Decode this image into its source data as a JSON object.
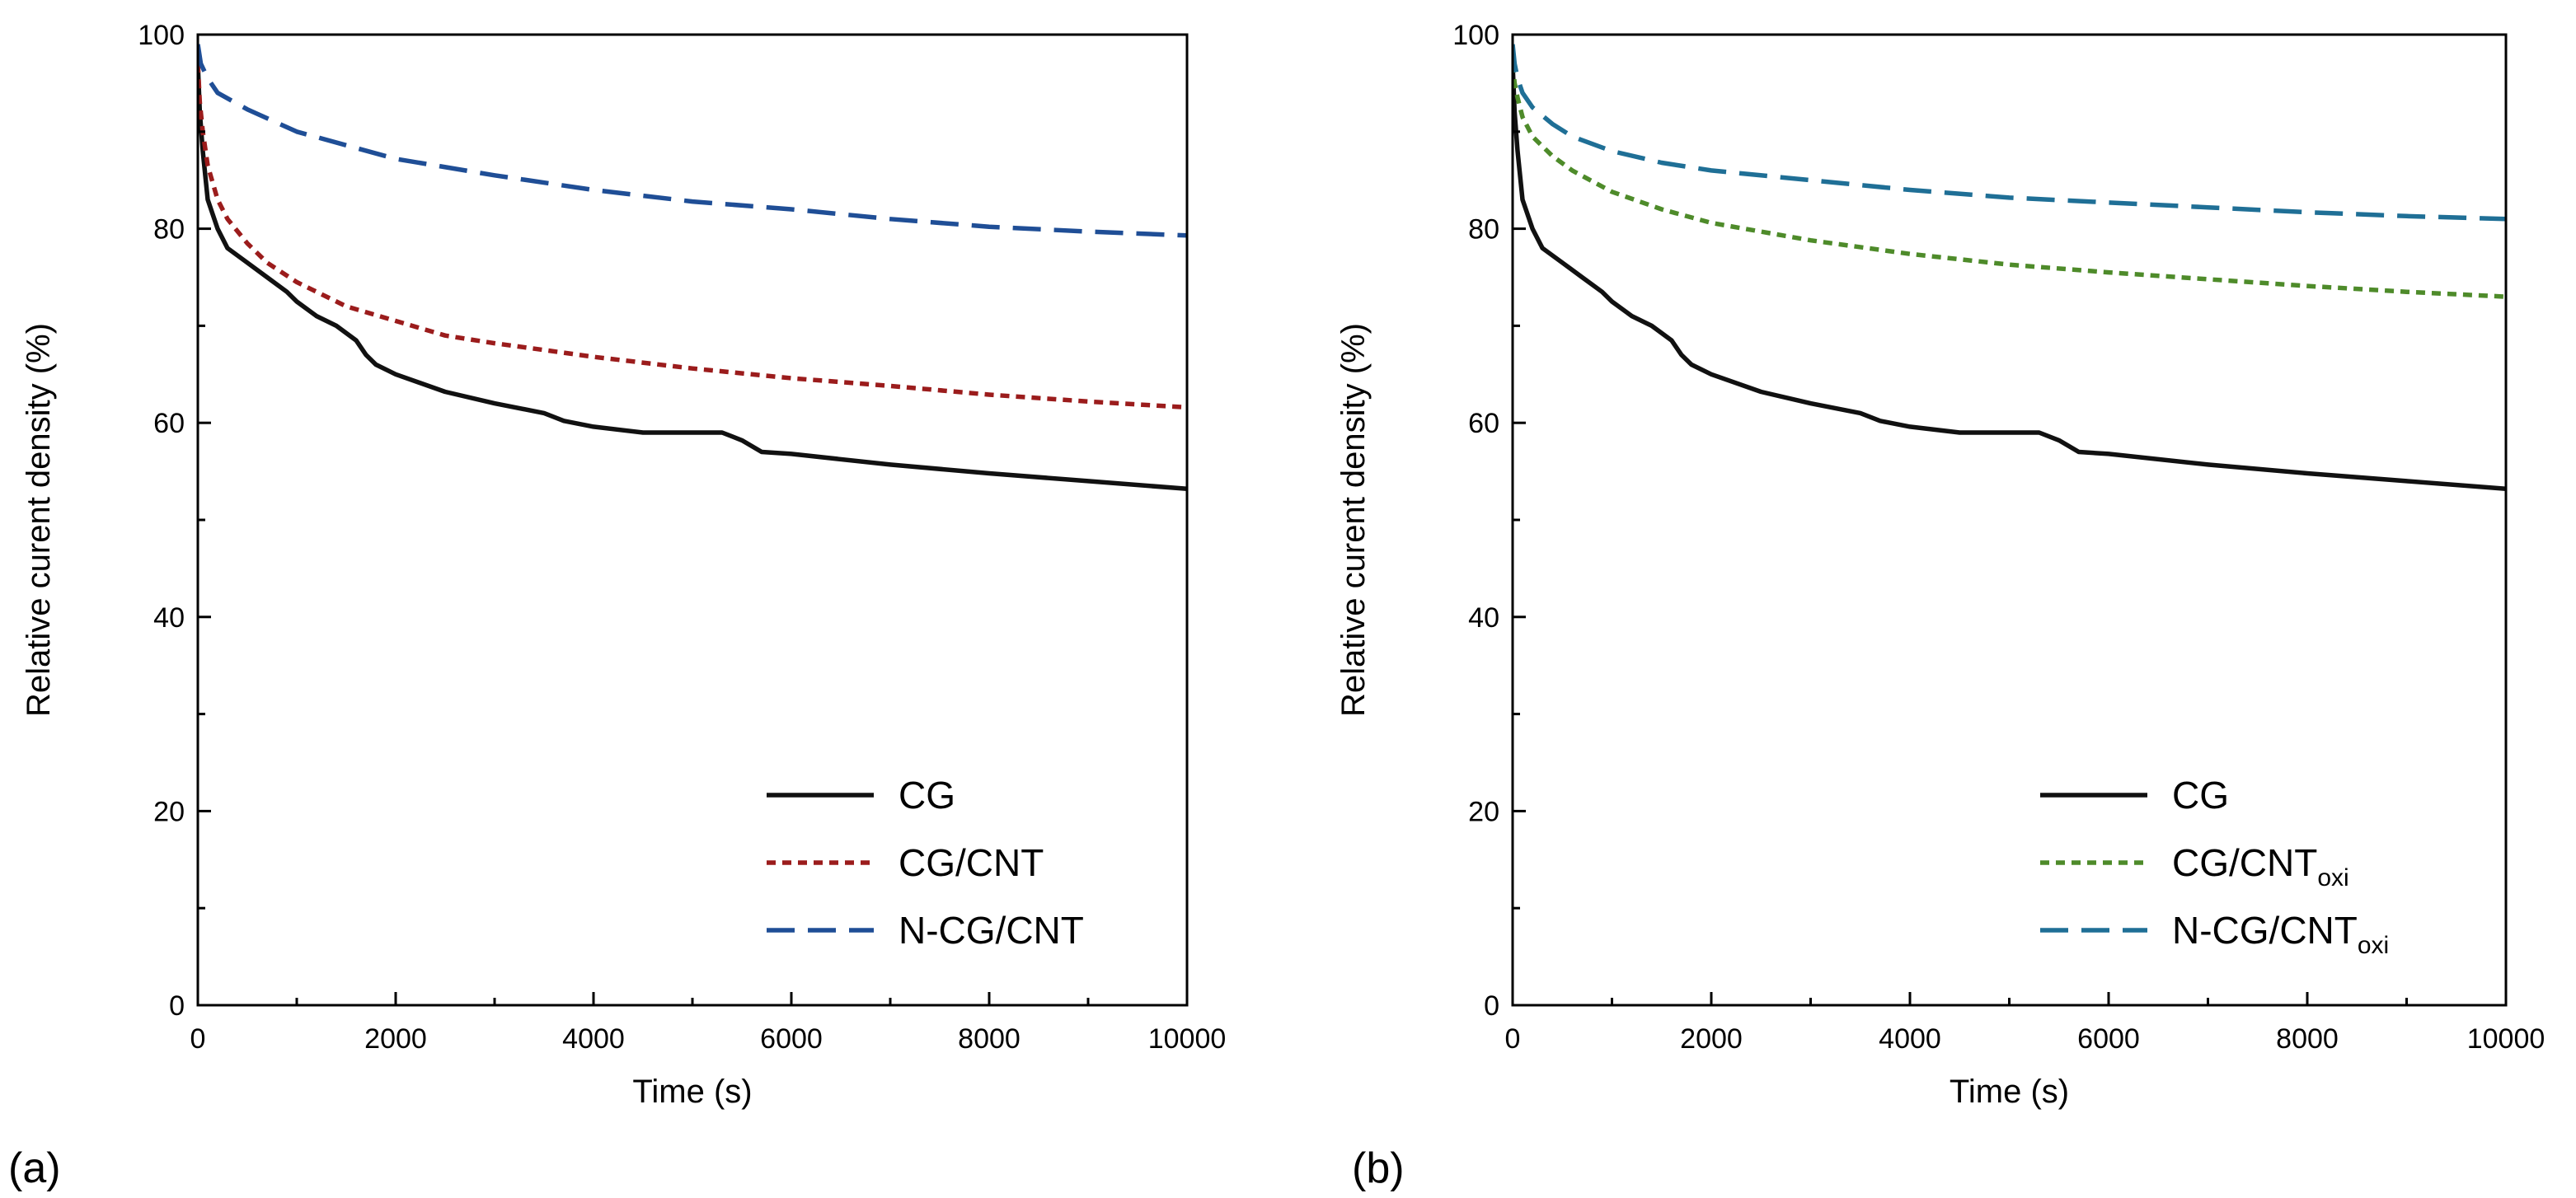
{
  "colors": {
    "cg": "#111111",
    "cnt": "#9b1c1c",
    "ncnt": "#1f4e96",
    "cntoxi": "#4e8b2a",
    "ncntoxi": "#1f6f96"
  },
  "chart_data": [
    {
      "type": "line",
      "panel_label": "(a)",
      "xlabel": "Time (s)",
      "ylabel": "Relative curent density (%)",
      "xlim": [
        0,
        10000
      ],
      "ylim": [
        0,
        100
      ],
      "xticks": [
        0,
        2000,
        4000,
        6000,
        8000,
        10000
      ],
      "yticks": [
        0,
        20,
        40,
        60,
        80,
        100
      ],
      "legend_position": "bottom-right",
      "series": [
        {
          "name": "CG",
          "sub": "",
          "style": "solid",
          "color": "#111111",
          "x": [
            0,
            20,
            50,
            100,
            200,
            300,
            500,
            700,
            900,
            1000,
            1200,
            1400,
            1600,
            1700,
            1800,
            2000,
            2500,
            3000,
            3500,
            3700,
            4000,
            4500,
            5000,
            5300,
            5500,
            5700,
            6000,
            7000,
            8000,
            9000,
            10000
          ],
          "y": [
            97,
            92,
            88,
            83,
            80,
            78,
            76.5,
            75,
            73.5,
            72.5,
            71,
            70,
            68.5,
            67,
            66,
            65,
            63.2,
            62,
            61,
            60.2,
            59.6,
            59,
            59,
            59,
            58.2,
            57,
            56.8,
            55.7,
            54.8,
            54,
            53.2
          ]
        },
        {
          "name": "CG/CNT",
          "sub": "",
          "style": "dotted",
          "color": "#9b1c1c",
          "x": [
            0,
            20,
            50,
            100,
            200,
            300,
            500,
            700,
            1000,
            1500,
            2000,
            2500,
            3000,
            3500,
            4000,
            5000,
            6000,
            7000,
            8000,
            9000,
            10000
          ],
          "y": [
            97,
            93,
            90,
            86.5,
            83,
            81,
            78.5,
            76.5,
            74.5,
            72,
            70.5,
            69,
            68.2,
            67.5,
            66.8,
            65.6,
            64.6,
            63.8,
            62.9,
            62.2,
            61.6
          ]
        },
        {
          "name": "N-CG/CNT",
          "sub": "",
          "style": "dashed",
          "color": "#1f4e96",
          "x": [
            0,
            30,
            100,
            200,
            500,
            1000,
            2000,
            3000,
            4000,
            5000,
            6000,
            7000,
            8000,
            9000,
            10000
          ],
          "y": [
            99,
            97,
            95.5,
            94,
            92.3,
            90,
            87.2,
            85.5,
            84,
            82.8,
            82,
            81,
            80.2,
            79.7,
            79.3
          ]
        }
      ]
    },
    {
      "type": "line",
      "panel_label": "(b)",
      "xlabel": "Time (s)",
      "ylabel": "Relative curent density (%)",
      "xlim": [
        0,
        10000
      ],
      "ylim": [
        0,
        100
      ],
      "xticks": [
        0,
        2000,
        4000,
        6000,
        8000,
        10000
      ],
      "yticks": [
        0,
        20,
        40,
        60,
        80,
        100
      ],
      "legend_position": "bottom-right",
      "series": [
        {
          "name": "CG",
          "sub": "",
          "style": "solid",
          "color": "#111111",
          "x": [
            0,
            20,
            50,
            100,
            200,
            300,
            500,
            700,
            900,
            1000,
            1200,
            1400,
            1600,
            1700,
            1800,
            2000,
            2500,
            3000,
            3500,
            3700,
            4000,
            4500,
            5000,
            5300,
            5500,
            5700,
            6000,
            7000,
            8000,
            9000,
            10000
          ],
          "y": [
            97,
            92,
            88,
            83,
            80,
            78,
            76.5,
            75,
            73.5,
            72.5,
            71,
            70,
            68.5,
            67,
            66,
            65,
            63.2,
            62,
            61,
            60.2,
            59.6,
            59,
            59,
            59,
            58.2,
            57,
            56.8,
            55.7,
            54.8,
            54,
            53.2
          ]
        },
        {
          "name": "CG/CNT",
          "sub": "oxi",
          "style": "dotted",
          "color": "#4e8b2a",
          "x": [
            0,
            20,
            50,
            100,
            200,
            400,
            600,
            1000,
            1500,
            2000,
            3000,
            4000,
            5000,
            6000,
            7000,
            8000,
            9000,
            10000
          ],
          "y": [
            97,
            95,
            93.5,
            91.5,
            89.5,
            87.5,
            86,
            83.8,
            82,
            80.6,
            78.8,
            77.4,
            76.3,
            75.5,
            74.8,
            74.1,
            73.5,
            73
          ]
        },
        {
          "name": "N-CG/CNT",
          "sub": "oxi",
          "style": "dashed",
          "color": "#1f6f96",
          "x": [
            0,
            20,
            50,
            100,
            200,
            400,
            600,
            1000,
            1500,
            2000,
            3000,
            4000,
            5000,
            6000,
            7000,
            8000,
            9000,
            10000
          ],
          "y": [
            99,
            97,
            95.5,
            94,
            92.5,
            90.8,
            89.5,
            88,
            86.8,
            86,
            85,
            84,
            83.2,
            82.7,
            82.2,
            81.7,
            81.3,
            81
          ]
        }
      ]
    }
  ]
}
